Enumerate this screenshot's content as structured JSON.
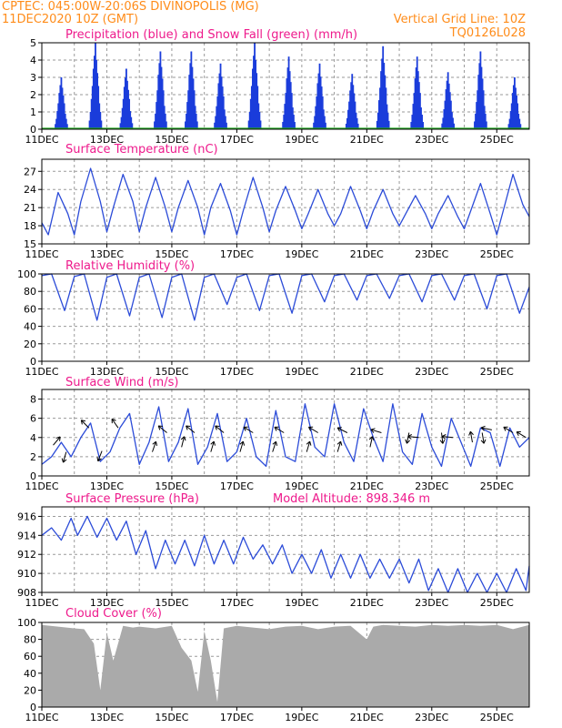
{
  "header": {
    "line1": "CPTEC:   045:00W-20:06S   DIVINOPOLIS (MG)",
    "line2": "11DEC2020 10Z (GMT)",
    "grid_note": "Vertical Grid Line: 10Z",
    "code": "TQ0126L028"
  },
  "colors": {
    "header": "#ff8c1a",
    "panel_title": "#ee1a8c",
    "line": "#2b4bd8",
    "precip_bar": "#1a3cdb",
    "snow": "#22aa22",
    "cloud": "#aaaaaa",
    "grid": "#9a9a9a"
  },
  "x_tick_labels": [
    "11DEC",
    "13DEC",
    "15DEC",
    "17DEC",
    "19DEC",
    "21DEC",
    "23DEC",
    "25DEC"
  ],
  "chart_data": [
    {
      "type": "bar",
      "title": "Precipitation (blue) and Snow Fall (green) (mm/h)",
      "ylim": [
        0,
        5
      ],
      "yticks": [
        0,
        1,
        2,
        3,
        4,
        5
      ],
      "day_peaks": [
        {
          "day": 11.6,
          "peak": 3.0
        },
        {
          "day": 12.65,
          "peak": 5.0
        },
        {
          "day": 13.6,
          "peak": 3.5
        },
        {
          "day": 14.65,
          "peak": 4.5
        },
        {
          "day": 15.6,
          "peak": 4.5
        },
        {
          "day": 16.5,
          "peak": 3.8
        },
        {
          "day": 17.55,
          "peak": 5.0
        },
        {
          "day": 18.6,
          "peak": 4.2
        },
        {
          "day": 19.55,
          "peak": 3.8
        },
        {
          "day": 20.55,
          "peak": 3.2
        },
        {
          "day": 21.5,
          "peak": 4.8
        },
        {
          "day": 22.55,
          "peak": 4.2
        },
        {
          "day": 23.5,
          "peak": 3.3
        },
        {
          "day": 24.5,
          "peak": 4.5
        },
        {
          "day": 25.55,
          "peak": 3.0
        }
      ],
      "snow_values": "all 0"
    },
    {
      "type": "line",
      "title": "Surface Temperature (nC)",
      "ylim": [
        15,
        29
      ],
      "yticks": [
        15,
        18,
        21,
        24,
        27
      ],
      "x_day": [
        11.0,
        11.2,
        11.5,
        11.8,
        12.0,
        12.2,
        12.5,
        12.8,
        13.0,
        13.2,
        13.5,
        13.8,
        14.0,
        14.2,
        14.5,
        14.8,
        15.0,
        15.2,
        15.5,
        15.8,
        16.0,
        16.2,
        16.5,
        16.8,
        17.0,
        17.2,
        17.5,
        17.8,
        18.0,
        18.2,
        18.5,
        18.8,
        19.0,
        19.2,
        19.5,
        19.8,
        20.0,
        20.2,
        20.5,
        20.8,
        21.0,
        21.2,
        21.5,
        21.8,
        22.0,
        22.2,
        22.5,
        22.8,
        23.0,
        23.2,
        23.5,
        23.8,
        24.0,
        24.2,
        24.5,
        24.8,
        25.0,
        25.2,
        25.5,
        25.8,
        26.0
      ],
      "values": [
        18.5,
        16.5,
        23.5,
        20.0,
        16.5,
        22.0,
        27.5,
        22.0,
        17.0,
        21.0,
        26.5,
        22.0,
        17.0,
        21.0,
        26.0,
        21.0,
        17.0,
        21.0,
        25.5,
        21.0,
        16.5,
        21.0,
        25.0,
        20.5,
        16.5,
        20.5,
        26.0,
        21.0,
        17.0,
        20.5,
        24.5,
        20.5,
        17.5,
        20.0,
        24.0,
        20.0,
        18.0,
        20.0,
        24.5,
        20.5,
        17.5,
        20.5,
        24.0,
        20.0,
        18.0,
        20.0,
        23.0,
        20.0,
        17.5,
        20.0,
        23.0,
        19.5,
        17.5,
        20.5,
        25.0,
        20.0,
        16.5,
        20.5,
        26.5,
        21.5,
        19.5
      ]
    },
    {
      "type": "line",
      "title": "Relative Humidity (%)",
      "ylim": [
        0,
        100
      ],
      "yticks": [
        0,
        20,
        40,
        60,
        80,
        100
      ],
      "x_day": [
        11.0,
        11.3,
        11.7,
        12.0,
        12.3,
        12.7,
        13.0,
        13.3,
        13.7,
        14.0,
        14.3,
        14.7,
        15.0,
        15.3,
        15.7,
        16.0,
        16.3,
        16.7,
        17.0,
        17.3,
        17.7,
        18.0,
        18.3,
        18.7,
        19.0,
        19.3,
        19.7,
        20.0,
        20.3,
        20.7,
        21.0,
        21.3,
        21.7,
        22.0,
        22.3,
        22.7,
        23.0,
        23.3,
        23.7,
        24.0,
        24.3,
        24.7,
        25.0,
        25.3,
        25.7,
        26.0
      ],
      "values": [
        98,
        100,
        58,
        97,
        100,
        47,
        96,
        100,
        52,
        96,
        100,
        50,
        96,
        100,
        47,
        96,
        100,
        65,
        96,
        100,
        58,
        98,
        100,
        55,
        98,
        100,
        68,
        98,
        100,
        70,
        98,
        100,
        72,
        98,
        100,
        68,
        98,
        100,
        70,
        98,
        100,
        60,
        98,
        100,
        55,
        85
      ]
    },
    {
      "type": "line",
      "title": "Surface Wind (m/s)",
      "ylim": [
        0,
        9
      ],
      "yticks": [
        0,
        2,
        4,
        6,
        8
      ],
      "x_day": [
        11.0,
        11.3,
        11.6,
        11.9,
        12.2,
        12.5,
        12.8,
        13.1,
        13.4,
        13.7,
        14.0,
        14.3,
        14.6,
        14.9,
        15.2,
        15.5,
        15.8,
        16.1,
        16.4,
        16.7,
        17.0,
        17.3,
        17.6,
        17.9,
        18.2,
        18.5,
        18.8,
        19.1,
        19.4,
        19.7,
        20.0,
        20.3,
        20.6,
        20.9,
        21.2,
        21.5,
        21.8,
        22.1,
        22.4,
        22.7,
        23.0,
        23.3,
        23.6,
        23.9,
        24.2,
        24.5,
        24.8,
        25.1,
        25.4,
        25.7,
        26.0
      ],
      "values": [
        1.2,
        2.0,
        3.5,
        2.0,
        4.0,
        5.5,
        1.5,
        2.5,
        5.0,
        6.5,
        1.2,
        3.5,
        7.2,
        1.5,
        3.5,
        7.0,
        1.2,
        3.0,
        6.5,
        1.5,
        2.5,
        6.0,
        2.0,
        1.0,
        6.8,
        2.0,
        1.5,
        7.5,
        3.0,
        2.0,
        7.5,
        3.5,
        1.5,
        7.0,
        4.0,
        1.5,
        7.5,
        2.5,
        1.2,
        6.5,
        3.0,
        1.0,
        6.0,
        3.5,
        1.0,
        5.0,
        4.5,
        1.0,
        5.0,
        3.0,
        4.0
      ],
      "arrows": [
        {
          "day": 11.35,
          "v": 3.2,
          "u": 1,
          "w": 1.2
        },
        {
          "day": 11.75,
          "v": 2.5,
          "u": -0.4,
          "w": -1.4
        },
        {
          "day": 12.85,
          "v": 2.6,
          "u": -0.5,
          "w": -1.3
        },
        {
          "day": 12.45,
          "v": 5.0,
          "u": -1,
          "w": 1
        },
        {
          "day": 13.35,
          "v": 5.0,
          "u": -0.7,
          "w": 1
        },
        {
          "day": 14.4,
          "v": 2.5,
          "u": 0.6,
          "w": 1.7
        },
        {
          "day": 14.85,
          "v": 4.5,
          "u": -1,
          "w": 0.8
        },
        {
          "day": 15.3,
          "v": 3.0,
          "u": 0.5,
          "w": 2
        },
        {
          "day": 15.7,
          "v": 4.5,
          "u": -1,
          "w": 0.8
        },
        {
          "day": 16.2,
          "v": 2.5,
          "u": 0.6,
          "w": 2
        },
        {
          "day": 16.6,
          "v": 4.5,
          "u": -1,
          "w": 0.8
        },
        {
          "day": 17.1,
          "v": 2.5,
          "u": 0.5,
          "w": 1.7
        },
        {
          "day": 17.5,
          "v": 4.5,
          "u": -1,
          "w": 0.6
        },
        {
          "day": 18.1,
          "v": 2.5,
          "u": 0.6,
          "w": 1.8
        },
        {
          "day": 18.45,
          "v": 4.5,
          "u": -1,
          "w": 0.6
        },
        {
          "day": 19.15,
          "v": 2.5,
          "u": 0.6,
          "w": 2
        },
        {
          "day": 19.5,
          "v": 4.5,
          "u": -1,
          "w": 0.6
        },
        {
          "day": 20.1,
          "v": 2.5,
          "u": 0.6,
          "w": 2
        },
        {
          "day": 20.4,
          "v": 4.5,
          "u": -1,
          "w": 0.5
        },
        {
          "day": 21.1,
          "v": 3.0,
          "u": 0.4,
          "w": 1.8
        },
        {
          "day": 21.45,
          "v": 4.5,
          "u": -1,
          "w": 0.3
        },
        {
          "day": 22.3,
          "v": 4.5,
          "u": -0.3,
          "w": -1.5
        },
        {
          "day": 22.6,
          "v": 4.0,
          "u": -1,
          "w": 0.1
        },
        {
          "day": 23.3,
          "v": 4.5,
          "u": 0.2,
          "w": -1.7
        },
        {
          "day": 23.65,
          "v": 4.0,
          "u": -1,
          "w": 0.1
        },
        {
          "day": 24.25,
          "v": 3.5,
          "u": -0.3,
          "w": 1.7
        },
        {
          "day": 24.55,
          "v": 4.5,
          "u": 0.2,
          "w": -1.2
        },
        {
          "day": 24.85,
          "v": 4.8,
          "u": -1,
          "w": 0.2
        },
        {
          "day": 25.5,
          "v": 4.5,
          "u": -1,
          "w": 0.6
        },
        {
          "day": 25.9,
          "v": 4.0,
          "u": -1,
          "w": 0.6
        }
      ]
    },
    {
      "type": "line",
      "title": "Surface Pressure (hPa)",
      "subtitle": "Model Altitude:  898.346  m",
      "ylim": [
        908,
        917
      ],
      "yticks": [
        908,
        910,
        912,
        914,
        916
      ],
      "x_day": [
        11.0,
        11.3,
        11.6,
        11.9,
        12.1,
        12.4,
        12.7,
        13.0,
        13.3,
        13.6,
        13.9,
        14.2,
        14.5,
        14.8,
        15.1,
        15.4,
        15.7,
        16.0,
        16.3,
        16.6,
        16.9,
        17.2,
        17.5,
        17.8,
        18.1,
        18.4,
        18.7,
        19.0,
        19.3,
        19.6,
        19.9,
        20.2,
        20.5,
        20.8,
        21.1,
        21.4,
        21.7,
        22.0,
        22.3,
        22.6,
        22.9,
        23.2,
        23.5,
        23.8,
        24.1,
        24.4,
        24.7,
        25.0,
        25.3,
        25.6,
        25.9,
        26.0
      ],
      "values": [
        914.0,
        914.8,
        913.5,
        915.8,
        914.0,
        916.0,
        913.8,
        915.8,
        913.5,
        915.5,
        912.0,
        914.5,
        910.5,
        913.5,
        911.0,
        913.5,
        910.8,
        914.0,
        911.0,
        913.5,
        911.0,
        913.8,
        911.5,
        913.0,
        911.0,
        913.0,
        910.0,
        912.0,
        910.0,
        912.5,
        909.5,
        912.0,
        909.5,
        912.0,
        909.5,
        911.5,
        909.5,
        911.5,
        909.0,
        911.5,
        908.2,
        910.5,
        908.0,
        910.5,
        908.0,
        910.0,
        908.0,
        910.0,
        908.0,
        910.5,
        908.2,
        910.8
      ]
    },
    {
      "type": "area",
      "title": "Cloud Cover (%)",
      "ylim": [
        0,
        100
      ],
      "yticks": [
        0,
        20,
        40,
        60,
        80,
        100
      ],
      "x_day": [
        11.0,
        11.5,
        12.0,
        12.3,
        12.6,
        12.8,
        13.0,
        13.2,
        13.5,
        13.8,
        14.0,
        14.5,
        15.0,
        15.3,
        15.6,
        15.8,
        16.0,
        16.2,
        16.4,
        16.6,
        17.0,
        17.5,
        18.0,
        18.5,
        19.0,
        19.5,
        20.0,
        20.5,
        21.0,
        21.2,
        21.5,
        22.0,
        22.5,
        23.0,
        23.5,
        24.0,
        24.5,
        25.0,
        25.5,
        26.0
      ],
      "values": [
        97,
        95,
        93,
        92,
        75,
        20,
        88,
        55,
        96,
        94,
        95,
        93,
        96,
        70,
        55,
        18,
        90,
        55,
        6,
        93,
        96,
        94,
        92,
        95,
        96,
        92,
        95,
        96,
        80,
        95,
        97,
        96,
        95,
        97,
        96,
        97,
        96,
        97,
        92,
        97
      ]
    }
  ]
}
